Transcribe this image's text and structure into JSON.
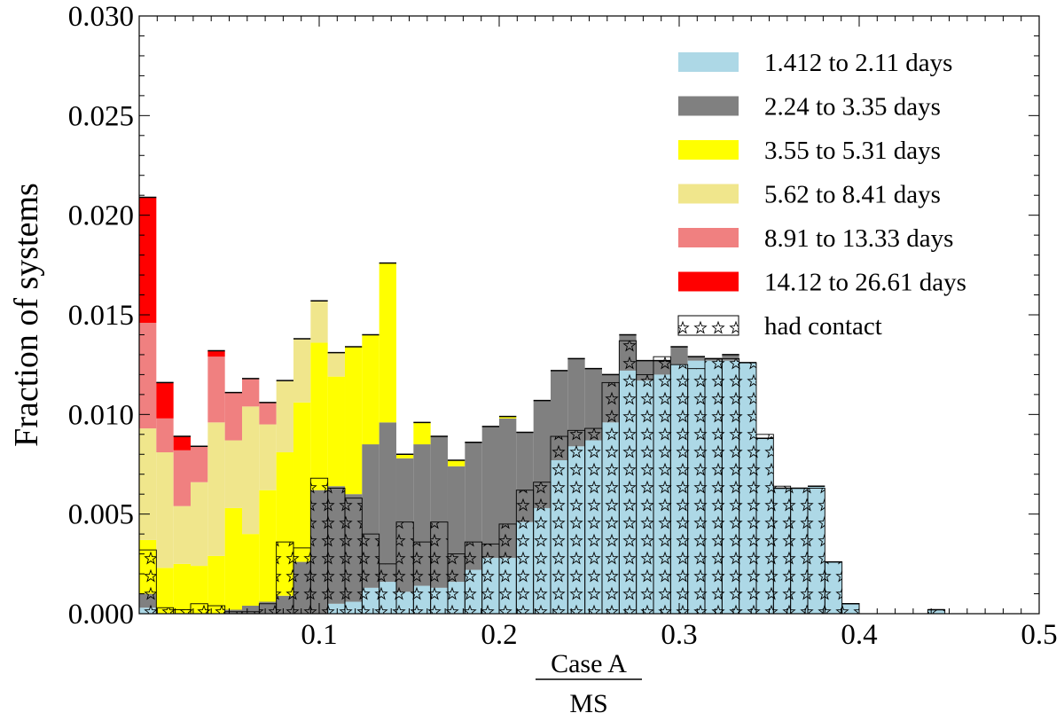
{
  "chart_data": {
    "type": "bar",
    "stacked": true,
    "histogram": true,
    "ylabel": "Fraction of systems",
    "xlabel_numerator": "Case A",
    "xlabel_denominator": "MS",
    "xlim": [
      0.0,
      0.5
    ],
    "ylim": [
      0.0,
      0.03
    ],
    "x_ticks": [
      "0.1",
      "0.2",
      "0.3",
      "0.4",
      "0.5"
    ],
    "y_ticks": [
      "0.000",
      "0.005",
      "0.010",
      "0.015",
      "0.020",
      "0.025",
      "0.030"
    ],
    "bin_width": 0.00952,
    "bin_starts": [
      0.0,
      0.00952,
      0.01905,
      0.02857,
      0.0381,
      0.04762,
      0.05714,
      0.06667,
      0.07619,
      0.08571,
      0.09524,
      0.10476,
      0.11429,
      0.12381,
      0.13333,
      0.14286,
      0.15238,
      0.1619,
      0.17143,
      0.18095,
      0.19048,
      0.2,
      0.20952,
      0.21905,
      0.22857,
      0.2381,
      0.24762,
      0.25714,
      0.26667,
      0.27619,
      0.28571,
      0.29524,
      0.30476,
      0.31429,
      0.32381,
      0.33333,
      0.34286,
      0.35238,
      0.3619,
      0.37143,
      0.38095,
      0.39048,
      0.4,
      0.40952,
      0.41905,
      0.42857,
      0.4381,
      0.44762,
      0.45714,
      0.46667,
      0.47619,
      0.48571,
      0.49524
    ],
    "series": [
      {
        "name": "1.412 to 2.11 days",
        "color": "#add8e6",
        "values": [
          0.0003,
          0,
          0,
          0,
          0,
          0,
          0,
          0,
          0,
          0,
          0,
          0.0005,
          0.0006,
          0.0013,
          0.0016,
          0.0011,
          0.0014,
          0.0013,
          0.0016,
          0.0022,
          0.0028,
          0.0028,
          0.0046,
          0.0053,
          0.0077,
          0.0084,
          0.0087,
          0.0096,
          0.0122,
          0.0117,
          0.012,
          0.0125,
          0.0127,
          0.0127,
          0.0127,
          0.0126,
          0.0088,
          0.0063,
          0.0063,
          0.0064,
          0.0026,
          0.0005,
          0,
          0,
          0,
          0,
          0.0002,
          0,
          0,
          0,
          0,
          0,
          0
        ]
      },
      {
        "name": "2.24 to 3.35 days",
        "color": "#808080",
        "values": [
          0.0007,
          0,
          0,
          0,
          0,
          0.0002,
          0.0004,
          0.0006,
          0.0009,
          0.0026,
          0.0062,
          0.0059,
          0.0054,
          0.0072,
          0.008,
          0.0067,
          0.0071,
          0.0076,
          0.0058,
          0.0064,
          0.0066,
          0.007,
          0.0045,
          0.0054,
          0.0045,
          0.0044,
          0.0036,
          0.0024,
          0.0018,
          0.001,
          0.0007,
          0.0009,
          0.0002,
          0.0001,
          0.0003,
          0,
          0,
          0,
          0,
          0,
          0,
          0,
          0,
          0,
          0,
          0,
          0,
          0,
          0,
          0,
          0,
          0,
          0
        ]
      },
      {
        "name": "3.55 to 5.31 days",
        "color": "#ffff00",
        "values": [
          0.0027,
          0.0023,
          0.0025,
          0.0024,
          0.0029,
          0.0051,
          0.0036,
          0.0056,
          0.0072,
          0.008,
          0.0074,
          0.0055,
          0.0074,
          0.0055,
          0.008,
          0.0002,
          0.0011,
          0,
          0.0003,
          0,
          0,
          0.0001,
          0,
          0,
          0,
          0,
          0,
          0,
          0,
          0,
          0,
          0,
          0,
          0,
          0,
          0,
          0,
          0,
          0,
          0,
          0,
          0,
          0,
          0,
          0,
          0,
          0,
          0,
          0,
          0,
          0,
          0,
          0
        ]
      },
      {
        "name": "5.62 to 8.41 days",
        "color": "#f0e68c",
        "values": [
          0.0056,
          0.0058,
          0.0029,
          0.0042,
          0.0067,
          0.0034,
          0.0064,
          0.0033,
          0.0036,
          0.0032,
          0.0021,
          0.0012,
          0,
          0,
          0,
          0,
          0,
          0,
          0,
          0,
          0,
          0,
          0,
          0,
          0,
          0,
          0,
          0,
          0,
          0,
          0,
          0,
          0,
          0,
          0,
          0,
          0,
          0,
          0,
          0,
          0,
          0,
          0,
          0,
          0,
          0,
          0,
          0,
          0,
          0,
          0,
          0,
          0
        ]
      },
      {
        "name": "8.91 to 13.33 days",
        "color": "#f08080",
        "values": [
          0.0053,
          0.0017,
          0.0028,
          0.0018,
          0.0033,
          0.0024,
          0.0014,
          0.0011,
          0,
          0,
          0,
          0,
          0,
          0,
          0,
          0,
          0,
          0,
          0,
          0,
          0,
          0,
          0,
          0,
          0,
          0,
          0,
          0,
          0,
          0,
          0,
          0,
          0,
          0,
          0,
          0,
          0,
          0,
          0,
          0,
          0,
          0,
          0,
          0,
          0,
          0,
          0,
          0,
          0,
          0,
          0,
          0,
          0
        ]
      },
      {
        "name": "14.12 to 26.61 days",
        "color": "#ff0000",
        "values": [
          0.0063,
          0.0018,
          0.0007,
          0,
          0.0003,
          0,
          0,
          0,
          0,
          0,
          0,
          0,
          0,
          0,
          0,
          0,
          0,
          0,
          0,
          0,
          0,
          0,
          0,
          0,
          0,
          0,
          0,
          0,
          0,
          0,
          0,
          0,
          0,
          0,
          0,
          0,
          0,
          0,
          0,
          0,
          0,
          0,
          0,
          0,
          0,
          0,
          0,
          0,
          0,
          0,
          0,
          0,
          0
        ]
      }
    ],
    "had_contact": {
      "name": "had contact",
      "values": [
        0.0032,
        0.0003,
        0.0002,
        0.0005,
        0.0004,
        0.0001,
        0.0001,
        0.0005,
        0.0036,
        0.0033,
        0.0068,
        0.0063,
        0.0058,
        0.004,
        0.0025,
        0.0046,
        0.0036,
        0.0046,
        0.003,
        0.0036,
        0.0035,
        0.0045,
        0.0062,
        0.0066,
        0.0089,
        0.0092,
        0.0093,
        0.0116,
        0.0137,
        0.012,
        0.0129,
        0.0125,
        0.0123,
        0.0128,
        0.0128,
        0.0126,
        0.009,
        0.0064,
        0.0063,
        0.0063,
        0.0026,
        0.0005,
        0,
        0,
        0,
        0,
        0.0002,
        0,
        0,
        0,
        0,
        0,
        0
      ]
    },
    "legend_position": "top-right",
    "grid": false
  }
}
